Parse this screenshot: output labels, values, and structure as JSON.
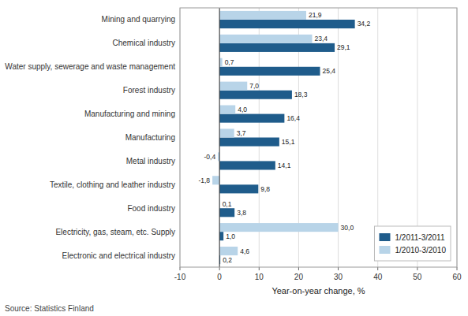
{
  "chart_data": {
    "type": "bar",
    "orientation": "horizontal",
    "categories": [
      "Electronic and electrical industry",
      "Electricity, gas, steam, etc. Supply",
      "Food industry",
      "Textile, clothing and leather industry",
      "Metal industry",
      "Manufacturing",
      "Manufacturing and mining",
      "Forest industry",
      "Water supply, sewerage and waste management",
      "Chemical industry",
      "Mining and quarrying"
    ],
    "series": [
      {
        "name": "1/2011-3/2011",
        "color": "#1F5C8B",
        "values": [
          0.2,
          1.0,
          3.8,
          9.8,
          14.1,
          15.1,
          16.4,
          18.3,
          25.4,
          29.1,
          34.2
        ],
        "value_labels": [
          "0,2",
          "1,0",
          "3,8",
          "9,8",
          "14,1",
          "15,1",
          "16,4",
          "18,3",
          "25,4",
          "29,1",
          "34,2"
        ]
      },
      {
        "name": "1/2010-3/2010",
        "color": "#B8D4E8",
        "values": [
          4.6,
          30.0,
          0.1,
          -1.8,
          -0.4,
          3.7,
          4.0,
          7.0,
          0.7,
          23.4,
          21.9
        ],
        "value_labels": [
          "4,6",
          "30,0",
          "0,1",
          "-1,8",
          "-0,4",
          "3,7",
          "4,0",
          "7,0",
          "0,7",
          "23,4",
          "21,9"
        ]
      }
    ],
    "xlabel": "Year-on-year change, %",
    "xlim": [
      -10,
      60
    ],
    "xticks": [
      -10,
      0,
      10,
      20,
      30,
      40,
      50,
      60
    ],
    "grid": true,
    "legend": "lower right",
    "data_labels": true,
    "source": "Source: Statistics Finland"
  }
}
